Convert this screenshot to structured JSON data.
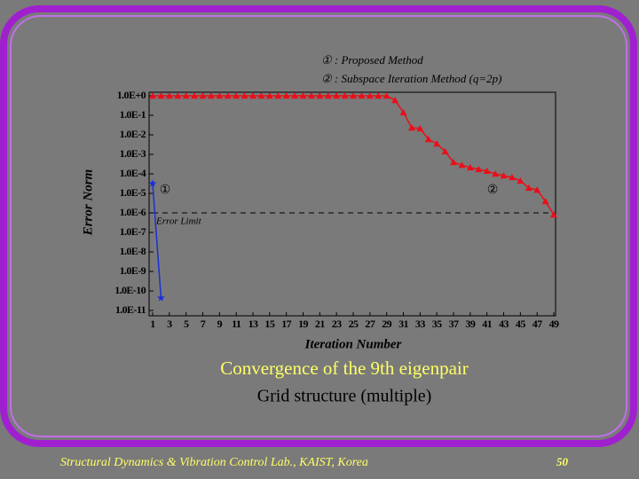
{
  "chart_data": {
    "type": "line",
    "y_label": "Error Norm",
    "x_label": "Iteration Number",
    "ylog": true,
    "ylim": [
      1e-11,
      1
    ],
    "yticks": [
      {
        "value": 1,
        "label": "1.0E+0"
      },
      {
        "value": 0.1,
        "label": "1.0E-1"
      },
      {
        "value": 0.01,
        "label": "1.0E-2"
      },
      {
        "value": 0.001,
        "label": "1.0E-3"
      },
      {
        "value": 0.0001,
        "label": "1.0E-4"
      },
      {
        "value": 1e-05,
        "label": "1.0E-5"
      },
      {
        "value": 1e-06,
        "label": "1.0E-6"
      },
      {
        "value": 1e-07,
        "label": "1.0E-7"
      },
      {
        "value": 1e-08,
        "label": "1.0E-8"
      },
      {
        "value": 1e-09,
        "label": "1.0E-9"
      },
      {
        "value": 1e-10,
        "label": "1.0E-10"
      },
      {
        "value": 1e-11,
        "label": "1.0E-11"
      }
    ],
    "xlim": [
      1,
      49
    ],
    "xticks": [
      1,
      3,
      5,
      7,
      9,
      11,
      13,
      15,
      17,
      19,
      21,
      23,
      25,
      27,
      29,
      31,
      33,
      35,
      37,
      39,
      41,
      43,
      45,
      47,
      49
    ],
    "legend": "top",
    "error_limit": {
      "value": 1e-06,
      "label": "Error Limit"
    },
    "annotations": [
      "①",
      "②"
    ],
    "series": [
      {
        "name": "① : Proposed Method",
        "color": "#1a2fd8",
        "marker": "star",
        "x": [
          1,
          2
        ],
        "values": [
          3.2e-05,
          4.4e-11
        ]
      },
      {
        "name": "② : Subspace Iteration Method (q=2p)",
        "color": "#e8101a",
        "marker": "triangle",
        "x": [
          1,
          2,
          3,
          4,
          5,
          6,
          7,
          8,
          9,
          10,
          11,
          12,
          13,
          14,
          15,
          16,
          17,
          18,
          19,
          20,
          21,
          22,
          23,
          24,
          25,
          26,
          27,
          28,
          29,
          30,
          31,
          32,
          33,
          34,
          35,
          36,
          37,
          38,
          39,
          40,
          41,
          42,
          43,
          44,
          45,
          46,
          47,
          48,
          49
        ],
        "values": [
          1,
          1,
          1,
          1,
          1,
          1,
          1,
          1,
          1,
          1,
          1,
          1,
          1,
          1,
          1,
          1,
          1,
          1,
          1,
          1,
          1,
          1,
          1,
          1,
          1,
          1,
          1,
          1,
          1,
          0.59,
          0.14,
          0.023,
          0.021,
          0.0059,
          0.0035,
          0.0014,
          0.00039,
          0.00028,
          0.00021,
          0.00017,
          0.00014,
          0.0001,
          8.1e-05,
          6.6e-05,
          4.4e-05,
          1.9e-05,
          1.5e-05,
          3.9e-06,
          8.1e-07
        ]
      }
    ]
  },
  "caption": {
    "title": "Convergence of the 9th eigenpair",
    "subtitle": "Grid structure (multiple)"
  },
  "footer": {
    "lab": "Structural Dynamics & Vibration Control Lab., KAIST, Korea",
    "page": "50"
  }
}
